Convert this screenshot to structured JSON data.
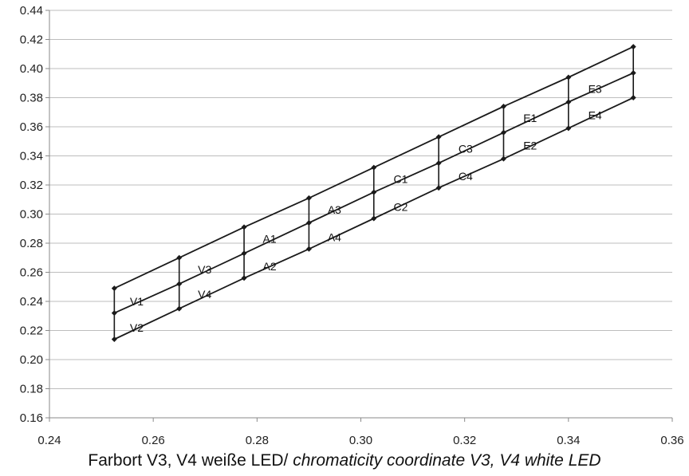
{
  "chart_data": {
    "type": "line",
    "title": "",
    "xlabel": "",
    "ylabel": "",
    "xlim": [
      0.24,
      0.36
    ],
    "ylim": [
      0.16,
      0.44
    ],
    "x_ticks": [
      "0.24",
      "0.26",
      "0.28",
      "0.30",
      "0.32",
      "0.34",
      "0.36"
    ],
    "y_ticks": [
      "0.16",
      "0.18",
      "0.20",
      "0.22",
      "0.24",
      "0.26",
      "0.28",
      "0.30",
      "0.32",
      "0.34",
      "0.36",
      "0.38",
      "0.40",
      "0.42",
      "0.44"
    ],
    "grid": "horizontal",
    "lines": [
      {
        "color": "#1a1a1a",
        "points": [
          [
            0.2525,
            0.249
          ],
          [
            0.265,
            0.27
          ],
          [
            0.2775,
            0.291
          ],
          [
            0.29,
            0.311
          ],
          [
            0.3025,
            0.332
          ],
          [
            0.315,
            0.353
          ],
          [
            0.3275,
            0.374
          ],
          [
            0.34,
            0.394
          ],
          [
            0.3525,
            0.415
          ]
        ]
      },
      {
        "color": "#1a1a1a",
        "points": [
          [
            0.2525,
            0.232
          ],
          [
            0.265,
            0.252
          ],
          [
            0.2775,
            0.273
          ],
          [
            0.29,
            0.294
          ],
          [
            0.3025,
            0.315
          ],
          [
            0.315,
            0.335
          ],
          [
            0.3275,
            0.356
          ],
          [
            0.34,
            0.377
          ],
          [
            0.3525,
            0.397
          ]
        ]
      },
      {
        "color": "#1a1a1a",
        "points": [
          [
            0.2525,
            0.214
          ],
          [
            0.265,
            0.235
          ],
          [
            0.2775,
            0.256
          ],
          [
            0.29,
            0.276
          ],
          [
            0.3025,
            0.297
          ],
          [
            0.315,
            0.318
          ],
          [
            0.3275,
            0.338
          ],
          [
            0.34,
            0.359
          ],
          [
            0.3525,
            0.38
          ]
        ]
      }
    ],
    "bin_labels": [
      {
        "text": "V1",
        "x": 0.2555,
        "y": 0.24
      },
      {
        "text": "V2",
        "x": 0.2555,
        "y": 0.222
      },
      {
        "text": "V3",
        "x": 0.2686,
        "y": 0.262
      },
      {
        "text": "V4",
        "x": 0.2686,
        "y": 0.245
      },
      {
        "text": "A1",
        "x": 0.2811,
        "y": 0.283
      },
      {
        "text": "A2",
        "x": 0.2811,
        "y": 0.264
      },
      {
        "text": "A3",
        "x": 0.2936,
        "y": 0.303
      },
      {
        "text": "A4",
        "x": 0.2936,
        "y": 0.284
      },
      {
        "text": "C1",
        "x": 0.3063,
        "y": 0.324
      },
      {
        "text": "C2",
        "x": 0.3063,
        "y": 0.305
      },
      {
        "text": "C3",
        "x": 0.3188,
        "y": 0.345
      },
      {
        "text": "C4",
        "x": 0.3188,
        "y": 0.326
      },
      {
        "text": "E1",
        "x": 0.3313,
        "y": 0.366
      },
      {
        "text": "E2",
        "x": 0.3313,
        "y": 0.347
      },
      {
        "text": "E3",
        "x": 0.3438,
        "y": 0.386
      },
      {
        "text": "E4",
        "x": 0.3438,
        "y": 0.368
      }
    ]
  },
  "caption": {
    "text": "Farbort V3, V4 weiße LED/ ",
    "italic": "chromaticity coordinate V3, V4 white LED"
  }
}
